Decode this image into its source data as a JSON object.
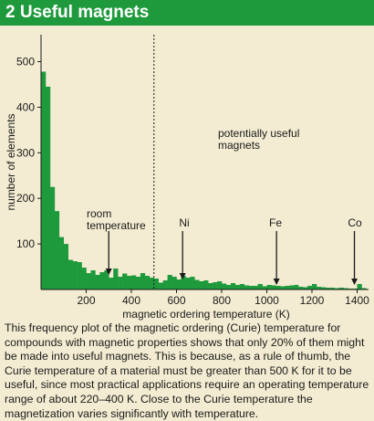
{
  "figure": {
    "title": "2 Useful magnets",
    "caption": "This frequency plot of the magnetic ordering (Curie) temperature for compounds with magnetic properties shows that only 20% of them might be made into useful magnets. This is because, as a rule of thumb, the Curie temperature of a material must be greater than 500 K for it to be useful, since most practical applications require an operating temperature range of about 220–400 K. Close to the Curie temperature the magnetization varies significantly with temperature."
  },
  "colors": {
    "header_bg": "#1e9a3c",
    "bar": "#1e9a3c",
    "background": "#f3ecd2"
  },
  "chart_data": {
    "type": "bar",
    "title": "",
    "xlabel": "magnetic ordering temperature (K)",
    "ylabel": "number of elements",
    "xlim": [
      0,
      1450
    ],
    "ylim": [
      0,
      550
    ],
    "xticks": [
      200,
      400,
      600,
      800,
      1000,
      1200,
      1400
    ],
    "yticks": [
      100,
      200,
      300,
      400,
      500
    ],
    "bin_width": 20,
    "bins_start": [
      0,
      20,
      40,
      60,
      80,
      100,
      120,
      140,
      160,
      180,
      200,
      220,
      240,
      260,
      280,
      300,
      320,
      340,
      360,
      380,
      400,
      420,
      440,
      460,
      480,
      500,
      520,
      540,
      560,
      580,
      600,
      620,
      640,
      660,
      680,
      700,
      720,
      740,
      760,
      780,
      800,
      820,
      840,
      860,
      880,
      900,
      920,
      940,
      960,
      980,
      1000,
      1020,
      1040,
      1060,
      1080,
      1100,
      1120,
      1140,
      1160,
      1180,
      1200,
      1220,
      1240,
      1260,
      1280,
      1300,
      1320,
      1340,
      1360,
      1380,
      1400,
      1420
    ],
    "values": [
      478,
      445,
      225,
      172,
      115,
      100,
      65,
      62,
      60,
      48,
      36,
      42,
      32,
      38,
      42,
      26,
      46,
      28,
      35,
      30,
      31,
      28,
      36,
      30,
      26,
      24,
      15,
      20,
      32,
      28,
      22,
      30,
      26,
      28,
      21,
      18,
      20,
      14,
      16,
      18,
      13,
      10,
      14,
      10,
      12,
      9,
      8,
      8,
      12,
      7,
      10,
      9,
      8,
      7,
      8,
      9,
      10,
      6,
      5,
      8,
      12,
      6,
      5,
      4,
      4,
      3,
      4,
      3,
      2,
      2,
      12,
      3
    ],
    "vertical_line": {
      "x": 500,
      "style": "dashed"
    },
    "annotations": [
      {
        "text": "potentially useful magnets",
        "lines": [
          "potentially useful",
          "magnets"
        ]
      },
      {
        "text": "room temperature",
        "lines": [
          "room",
          "temperature"
        ],
        "x": 300,
        "arrow_to_value": 30
      },
      {
        "text": "Ni",
        "lines": [
          "Ni"
        ],
        "x": 627,
        "arrow_to_value": 20
      },
      {
        "text": "Fe",
        "lines": [
          "Fe"
        ],
        "x": 1043,
        "arrow_to_value": 8
      },
      {
        "text": "Co",
        "lines": [
          "Co"
        ],
        "x": 1388,
        "arrow_to_value": 8
      }
    ],
    "grid": false,
    "legend": "none"
  }
}
